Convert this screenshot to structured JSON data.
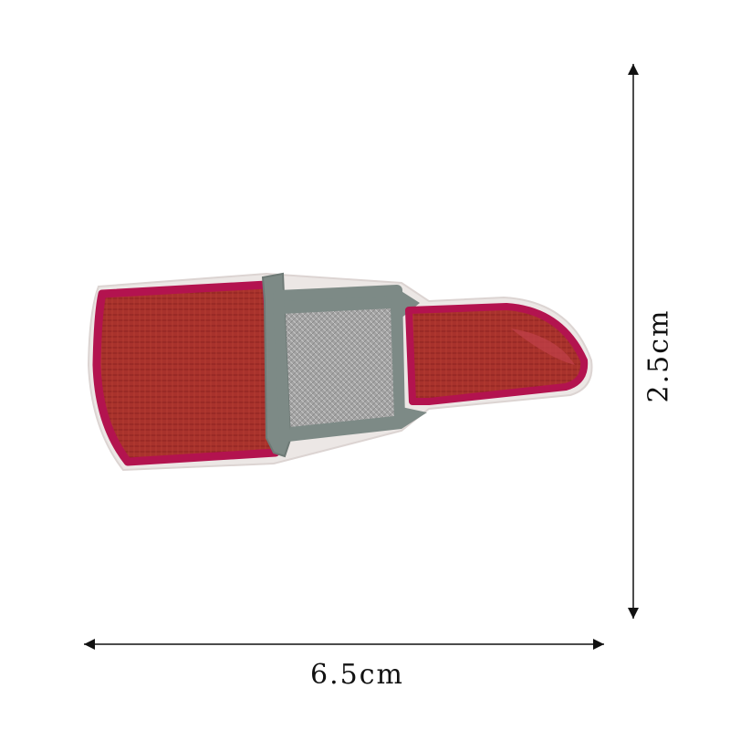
{
  "dimensions": {
    "width_label": "6.5cm",
    "height_label": "2.5cm"
  },
  "product": {
    "depicts": "lipstick-embroidered-patch",
    "colors": {
      "crimson_border": "#b3134f",
      "red_fill": "#a8322c",
      "silver_fill": "#9c9c9c",
      "gray_band": "#7c8a85",
      "white_edge": "#e9e4e2"
    }
  }
}
